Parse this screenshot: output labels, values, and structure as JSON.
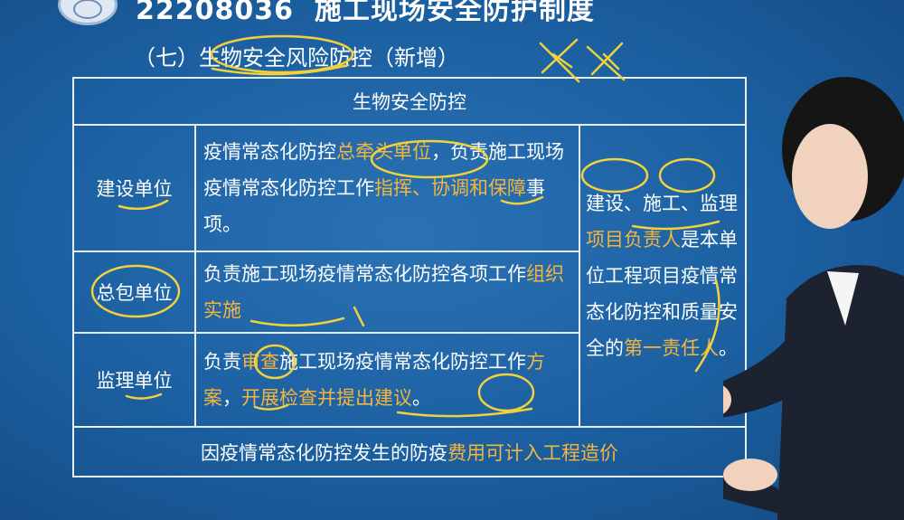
{
  "header": {
    "course_code": "22208036",
    "course_title": "施工现场安全防护制度",
    "section_title": "（七）生物安全风险防控（新增）"
  },
  "table": {
    "heading": "生物安全防控",
    "rows": [
      {
        "role": "建设单位",
        "desc_parts": [
          {
            "t": "疫情常态化防控",
            "hl": false
          },
          {
            "t": "总牵头单位",
            "hl": true
          },
          {
            "t": "，负责施工现场疫情常态化防控工作",
            "hl": false
          },
          {
            "t": "指挥、协调和保障",
            "hl": true
          },
          {
            "t": "事项。",
            "hl": false
          }
        ]
      },
      {
        "role": "总包单位",
        "desc_parts": [
          {
            "t": "负责施工现场疫情常态化防控各项工作",
            "hl": false
          },
          {
            "t": "组织实施",
            "hl": true
          }
        ]
      },
      {
        "role": "监理单位",
        "desc_parts": [
          {
            "t": "负责",
            "hl": false
          },
          {
            "t": "审查",
            "hl": true
          },
          {
            "t": "施工现场疫情常态化防控工作",
            "hl": false
          },
          {
            "t": "方案",
            "hl": true
          },
          {
            "t": "，",
            "hl": false
          },
          {
            "t": "开展检查并提出建议",
            "hl": true
          },
          {
            "t": "。",
            "hl": false
          }
        ]
      }
    ],
    "right_parts": [
      {
        "t": "建设、施工、监理",
        "hl": false
      },
      {
        "t": "项目负责人",
        "hl": true
      },
      {
        "t": "是本单位工程项目疫情常态化防控和质量安全的",
        "hl": false
      },
      {
        "t": "第一责任人",
        "hl": true
      },
      {
        "t": "。",
        "hl": false
      }
    ],
    "footer_parts": [
      {
        "t": "因疫情常态化防控发生的防疫",
        "hl": false
      },
      {
        "t": "费用可计入工程造价",
        "hl": true
      }
    ]
  },
  "colors": {
    "background": "#1b5fa0",
    "highlight": "#f5b53d",
    "ink": "#f2d13a"
  }
}
